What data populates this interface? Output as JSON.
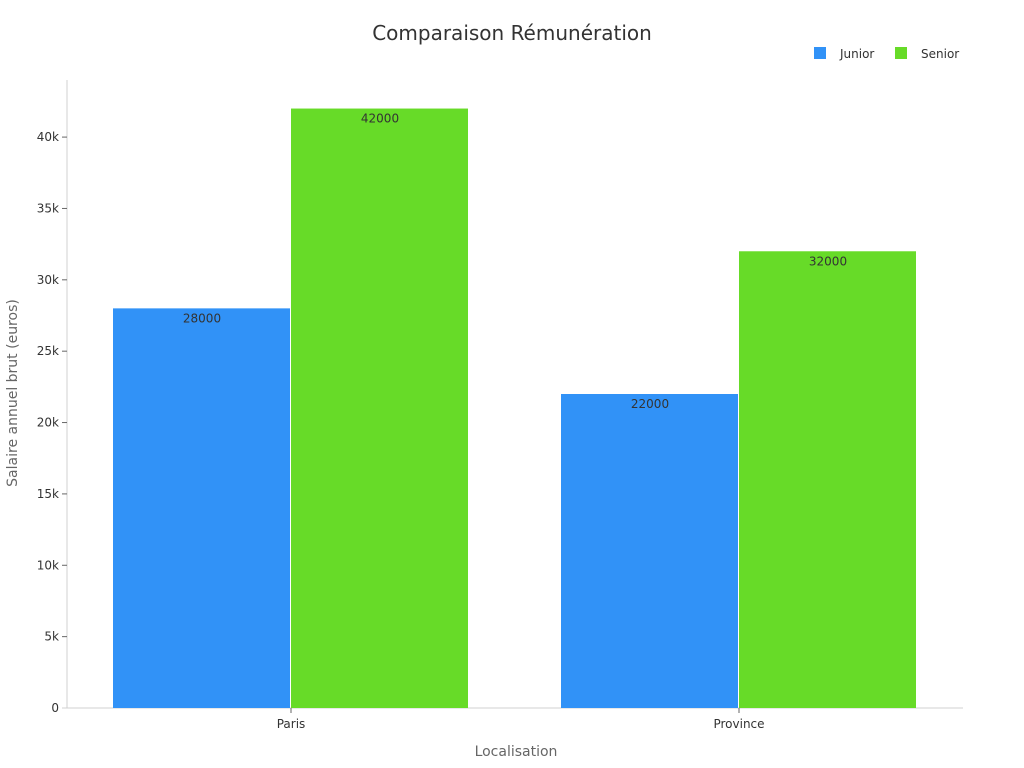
{
  "chart_data": {
    "type": "bar",
    "title": "Comparaison Rémunération",
    "xlabel": "Localisation",
    "ylabel": "Salaire annuel brut (euros)",
    "categories": [
      "Paris",
      "Province"
    ],
    "series": [
      {
        "name": "Junior",
        "values": [
          28000,
          22000
        ],
        "color": "#3192F7"
      },
      {
        "name": "Senior",
        "values": [
          42000,
          32000
        ],
        "color": "#67DB28"
      }
    ],
    "ylim": [
      0,
      44000
    ],
    "yticks": [
      {
        "value": 0,
        "label": "0"
      },
      {
        "value": 5000,
        "label": "5k"
      },
      {
        "value": 10000,
        "label": "10k"
      },
      {
        "value": 15000,
        "label": "15k"
      },
      {
        "value": 20000,
        "label": "20k"
      },
      {
        "value": 25000,
        "label": "25k"
      },
      {
        "value": 30000,
        "label": "30k"
      },
      {
        "value": 35000,
        "label": "35k"
      },
      {
        "value": 40000,
        "label": "40k"
      }
    ],
    "grid": false,
    "legend_position": "top-right",
    "show_data_labels": true
  }
}
